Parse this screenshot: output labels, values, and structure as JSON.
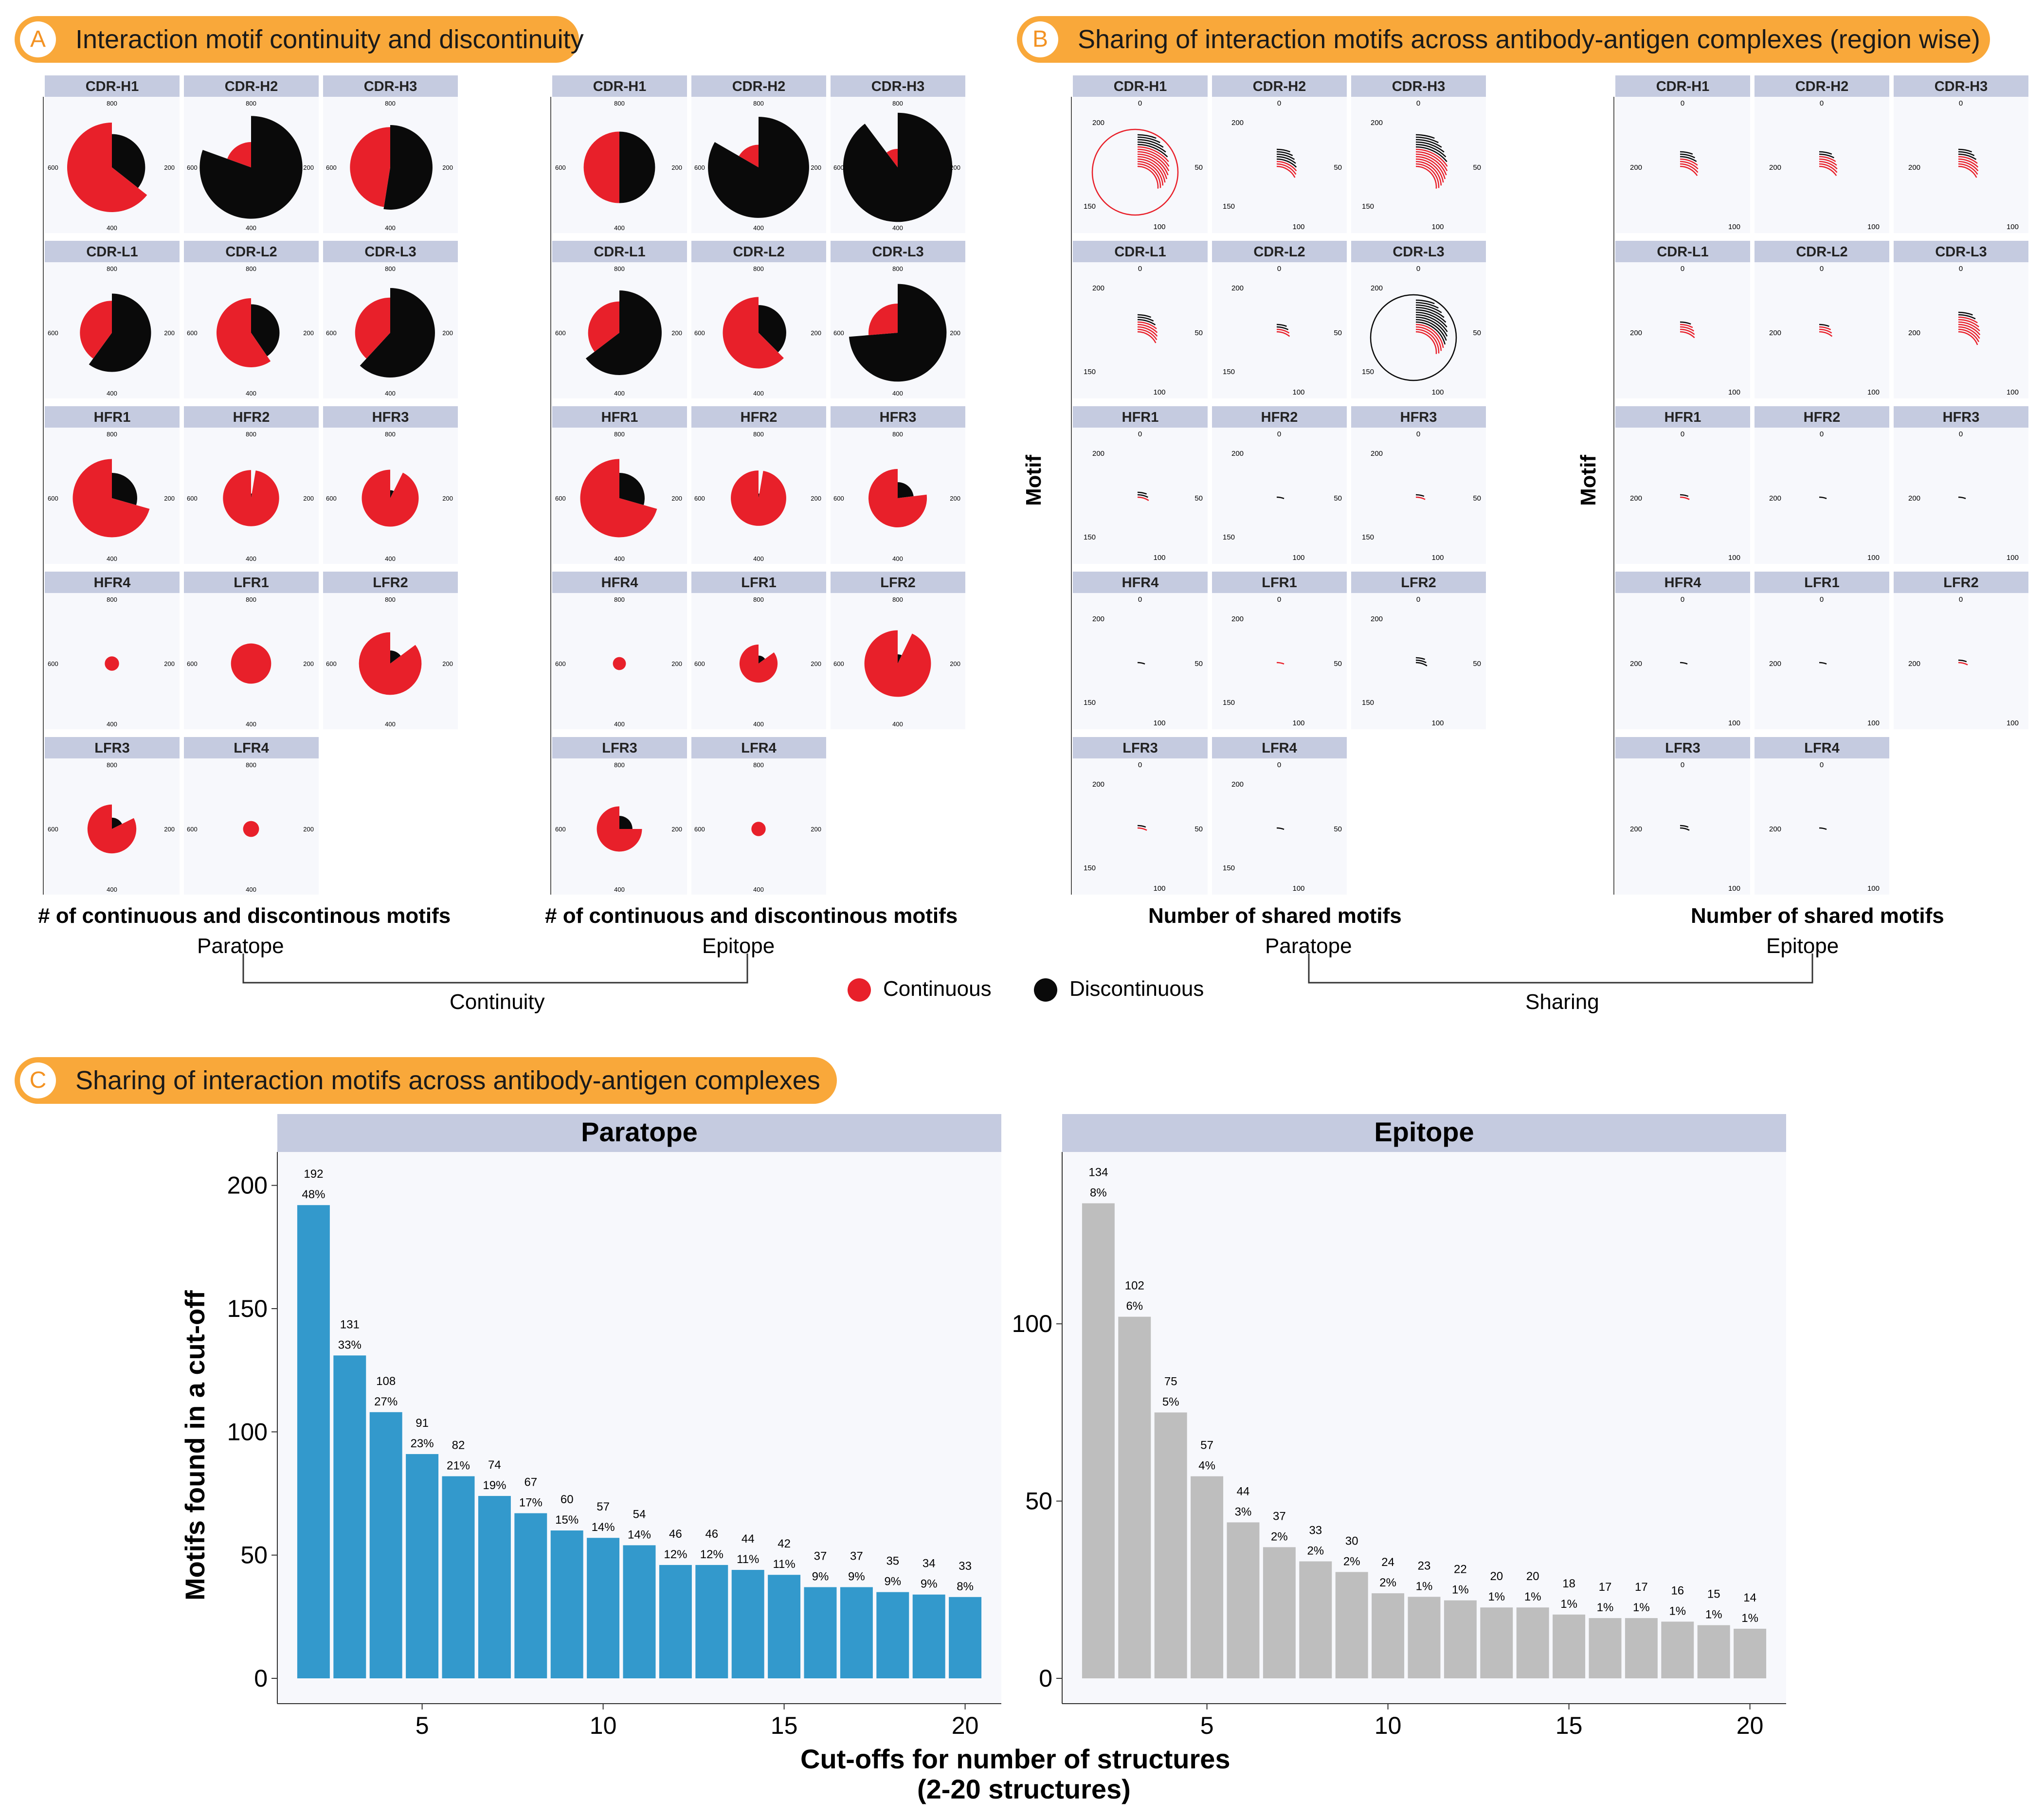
{
  "panel_a": {
    "letter": "A",
    "title": "Interaction motif continuity and discontinuity",
    "paratope_xlabel": "# of continuous and discontinous motifs",
    "epitope_xlabel": "# of continuous and discontinous motifs",
    "paratope_label": "Paratope",
    "epitope_label": "Epitope",
    "bracket_label": "Continuity",
    "radial_ticks": [
      "800",
      "200",
      "400",
      "600"
    ]
  },
  "panel_b": {
    "letter": "B",
    "title": "Sharing of interaction motifs across antibody-antigen complexes (region wise)",
    "ylabel": "Motif",
    "paratope_xlabel": "Number of shared motifs",
    "epitope_xlabel": "Number of shared motifs",
    "paratope_label": "Paratope",
    "epitope_label": "Epitope",
    "bracket_label": "Sharing",
    "paratope_ticks": [
      "0",
      "50",
      "100",
      "150",
      "200"
    ],
    "epitope_ticks": [
      "0",
      "100",
      "200"
    ]
  },
  "legend": {
    "items": [
      {
        "label": "Continuous",
        "color": "#E8202A"
      },
      {
        "label": "Discontinuous",
        "color": "#0A0A0A"
      }
    ]
  },
  "panel_c": {
    "letter": "C",
    "title": "Sharing of interaction motifs across antibody-antigen complexes",
    "ylabel": "Motifs found in a cut-off",
    "xlabel_line1": "Cut-offs for number of structures",
    "xlabel_line2": "(2-20 structures)"
  },
  "regions": [
    "CDR-H1",
    "CDR-H2",
    "CDR-H3",
    "CDR-L1",
    "CDR-L2",
    "CDR-L3",
    "HFR1",
    "HFR2",
    "HFR3",
    "HFR4",
    "LFR1",
    "LFR2",
    "LFR3",
    "LFR4"
  ],
  "chart_data": [
    {
      "type": "pie",
      "title": "Paratope",
      "note": "Coxcomb (polar) chart per region; radial axis 0-800; continuous vs discontinuous motif counts (approximate)",
      "series": [
        "Continuous",
        "Discontinuous"
      ],
      "rmax": 800,
      "regions": [
        {
          "region": "CDR-H1",
          "continuous": 470,
          "discontinuous": 260
        },
        {
          "region": "CDR-H2",
          "continuous": 150,
          "discontinuous": 620
        },
        {
          "region": "CDR-H3",
          "continuous": 380,
          "discontinuous": 420
        },
        {
          "region": "CDR-L1",
          "continuous": 240,
          "discontinuous": 360
        },
        {
          "region": "CDR-L2",
          "continuous": 280,
          "discontinuous": 190
        },
        {
          "region": "CDR-L3",
          "continuous": 290,
          "discontinuous": 470
        },
        {
          "region": "HFR1",
          "continuous": 360,
          "discontinuous": 150
        },
        {
          "region": "HFR2",
          "continuous": 185,
          "discontinuous": 5
        },
        {
          "region": "HFR3",
          "continuous": 190,
          "discontinuous": 15
        },
        {
          "region": "HFR4",
          "continuous": 12,
          "discontinuous": 0
        },
        {
          "region": "LFR1",
          "continuous": 95,
          "discontinuous": 0
        },
        {
          "region": "LFR2",
          "continuous": 230,
          "discontinuous": 40
        },
        {
          "region": "LFR3",
          "continuous": 140,
          "discontinuous": 30
        },
        {
          "region": "LFR4",
          "continuous": 15,
          "discontinuous": 0
        }
      ]
    },
    {
      "type": "pie",
      "title": "Epitope",
      "note": "Coxcomb (polar) chart per region; radial axis 0-800 (approximate)",
      "series": [
        "Continuous",
        "Discontinuous"
      ],
      "rmax": 800,
      "regions": [
        {
          "region": "CDR-H1",
          "continuous": 300,
          "discontinuous": 300
        },
        {
          "region": "CDR-H2",
          "continuous": 120,
          "discontinuous": 600
        },
        {
          "region": "CDR-H3",
          "continuous": 80,
          "discontinuous": 700
        },
        {
          "region": "CDR-L1",
          "continuous": 230,
          "discontinuous": 420
        },
        {
          "region": "CDR-L2",
          "continuous": 300,
          "discontinuous": 180
        },
        {
          "region": "CDR-L3",
          "continuous": 200,
          "discontinuous": 560
        },
        {
          "region": "HFR1",
          "continuous": 360,
          "discontinuous": 150
        },
        {
          "region": "HFR2",
          "continuous": 180,
          "discontinuous": 5
        },
        {
          "region": "HFR3",
          "continuous": 200,
          "discontinuous": 60
        },
        {
          "region": "HFR4",
          "continuous": 10,
          "discontinuous": 0
        },
        {
          "region": "LFR1",
          "continuous": 85,
          "discontinuous": 15
        },
        {
          "region": "LFR2",
          "continuous": 260,
          "discontinuous": 20
        },
        {
          "region": "LFR3",
          "continuous": 120,
          "discontinuous": 40
        },
        {
          "region": "LFR4",
          "continuous": 12,
          "discontinuous": 0
        }
      ]
    },
    {
      "type": "pie",
      "title": "Paratope",
      "note": "Radial bar charts of shared motif counts per region; arcs colored by continuity (schematic)",
      "series": [
        "Continuous",
        "Discontinuous"
      ],
      "regions": [
        {
          "region": "CDR-H1",
          "continuous": 120,
          "discontinuous": 60,
          "full_circle": "Continuous"
        },
        {
          "region": "CDR-H2",
          "continuous": 20,
          "discontinuous": 40
        },
        {
          "region": "CDR-H3",
          "continuous": 60,
          "discontinuous": 50
        },
        {
          "region": "CDR-L1",
          "continuous": 40,
          "discontinuous": 20
        },
        {
          "region": "CDR-L2",
          "continuous": 10,
          "discontinuous": 15
        },
        {
          "region": "CDR-L3",
          "continuous": 30,
          "discontinuous": 90,
          "full_circle": "Discontinuous"
        },
        {
          "region": "HFR1",
          "continuous": 8,
          "discontinuous": 10
        },
        {
          "region": "HFR2",
          "continuous": 0,
          "discontinuous": 2
        },
        {
          "region": "HFR3",
          "continuous": 8,
          "discontinuous": 4
        },
        {
          "region": "HFR4",
          "continuous": 0,
          "discontinuous": 1
        },
        {
          "region": "LFR1",
          "continuous": 6,
          "discontinuous": 0
        },
        {
          "region": "LFR2",
          "continuous": 0,
          "discontinuous": 20
        },
        {
          "region": "LFR3",
          "continuous": 10,
          "discontinuous": 6
        },
        {
          "region": "LFR4",
          "continuous": 0,
          "discontinuous": 1
        }
      ]
    },
    {
      "type": "pie",
      "title": "Epitope",
      "note": "Radial bar charts of shared motif counts per region (schematic)",
      "series": [
        "Continuous",
        "Discontinuous"
      ],
      "regions": [
        {
          "region": "CDR-H1",
          "continuous": 30,
          "discontinuous": 20
        },
        {
          "region": "CDR-H2",
          "continuous": 35,
          "discontinuous": 15
        },
        {
          "region": "CDR-H3",
          "continuous": 40,
          "discontinuous": 20
        },
        {
          "region": "CDR-L1",
          "continuous": 25,
          "discontinuous": 10
        },
        {
          "region": "CDR-L2",
          "continuous": 20,
          "discontinuous": 8
        },
        {
          "region": "CDR-L3",
          "continuous": 55,
          "discontinuous": 15
        },
        {
          "region": "HFR1",
          "continuous": 5,
          "discontinuous": 10
        },
        {
          "region": "HFR2",
          "continuous": 0,
          "discontinuous": 1
        },
        {
          "region": "HFR3",
          "continuous": 0,
          "discontinuous": 6
        },
        {
          "region": "HFR4",
          "continuous": 0,
          "discontinuous": 1
        },
        {
          "region": "LFR1",
          "continuous": 2,
          "discontinuous": 6
        },
        {
          "region": "LFR2",
          "continuous": 8,
          "discontinuous": 8
        },
        {
          "region": "LFR3",
          "continuous": 3,
          "discontinuous": 10
        },
        {
          "region": "LFR4",
          "continuous": 0,
          "discontinuous": 1
        }
      ]
    },
    {
      "type": "bar",
      "title": "Paratope",
      "xlabel": "Cut-offs for number of structures (2-20 structures)",
      "ylabel": "Motifs found in a cut-off",
      "x": [
        2,
        3,
        4,
        5,
        6,
        7,
        8,
        9,
        10,
        11,
        12,
        13,
        14,
        15,
        16,
        17,
        18,
        19,
        20
      ],
      "values": [
        192,
        131,
        108,
        91,
        82,
        74,
        67,
        60,
        57,
        54,
        46,
        46,
        44,
        42,
        37,
        37,
        35,
        34,
        33
      ],
      "percent_labels": [
        "48%",
        "33%",
        "27%",
        "23%",
        "21%",
        "19%",
        "17%",
        "15%",
        "14%",
        "14%",
        "12%",
        "12%",
        "11%",
        "11%",
        "9%",
        "9%",
        "9%",
        "9%",
        "8%"
      ],
      "ylim": [
        0,
        210
      ],
      "yticks": [
        0,
        50,
        100,
        150,
        200
      ],
      "xticks": [
        5,
        10,
        15,
        20
      ],
      "color": "#3399CC"
    },
    {
      "type": "bar",
      "title": "Epitope",
      "xlabel": "Cut-offs for number of structures (2-20 structures)",
      "ylabel": "Motifs found in a cut-off",
      "x": [
        2,
        3,
        4,
        5,
        6,
        7,
        8,
        9,
        10,
        11,
        12,
        13,
        14,
        15,
        16,
        17,
        18,
        19,
        20
      ],
      "values": [
        134,
        102,
        75,
        57,
        44,
        37,
        33,
        30,
        24,
        23,
        22,
        20,
        20,
        18,
        17,
        17,
        16,
        15,
        14
      ],
      "percent_labels": [
        "8%",
        "6%",
        "5%",
        "4%",
        "3%",
        "2%",
        "2%",
        "2%",
        "2%",
        "1%",
        "1%",
        "1%",
        "1%",
        "1%",
        "1%",
        "1%",
        "1%",
        "1%",
        "1%"
      ],
      "ylim": [
        0,
        146
      ],
      "yticks": [
        0,
        50,
        100
      ],
      "xticks": [
        5,
        10,
        15,
        20
      ],
      "color": "#BEBEBE"
    }
  ],
  "colors": {
    "continuous": "#E8202A",
    "discontinuous": "#0A0A0A",
    "strip": "#C5CBE0",
    "panel_bg": "#F7F8FC",
    "banner": "#F9A83A",
    "paratope_bar": "#3399CC",
    "epitope_bar": "#BEBEBE"
  }
}
